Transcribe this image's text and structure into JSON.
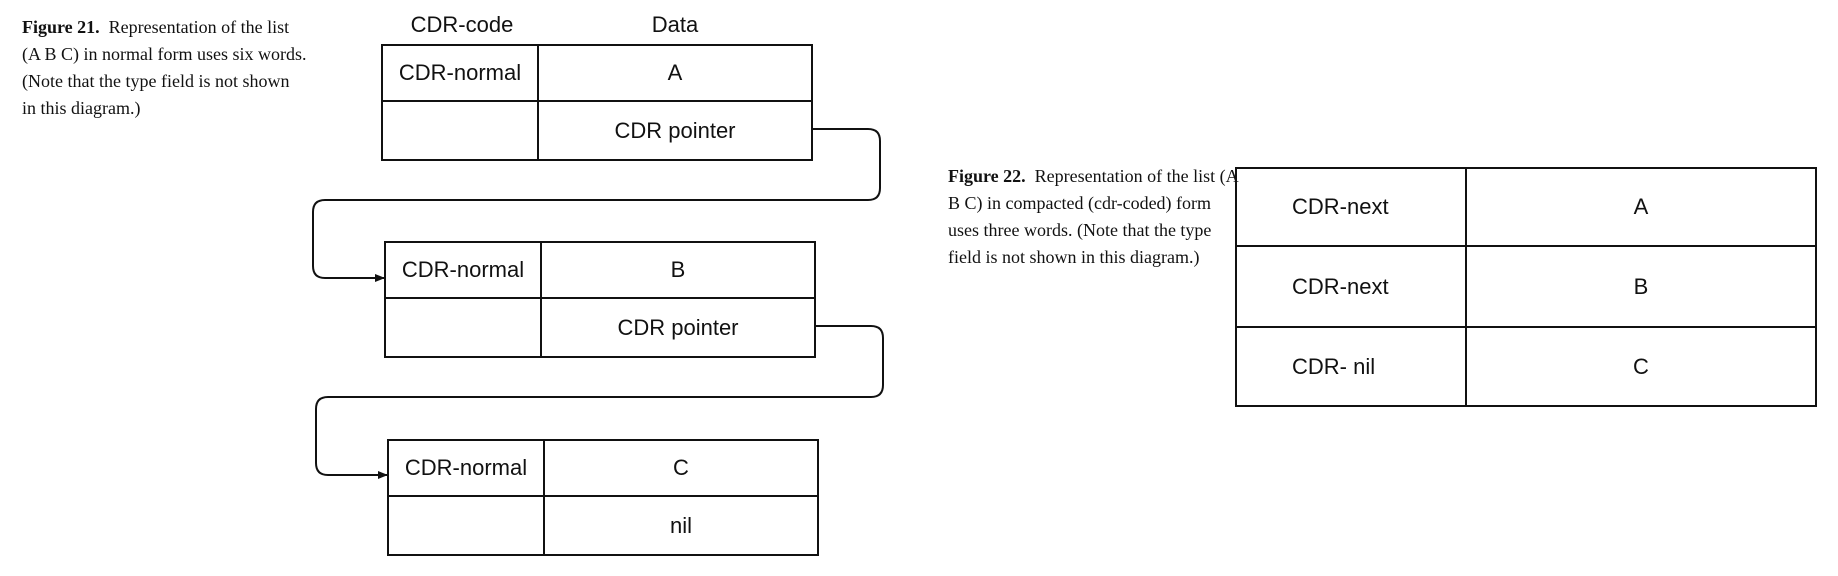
{
  "figure21": {
    "label": "Figure 21.",
    "text": "Representation of the list (A B C) in normal form uses six words. (Note that the type field is not shown in this diagram.)",
    "header_code": "CDR-code",
    "header_data": "Data",
    "cells": [
      {
        "code": "CDR-normal",
        "data": "A",
        "pointer": "CDR pointer"
      },
      {
        "code": "CDR-normal",
        "data": "B",
        "pointer": "CDR pointer"
      },
      {
        "code": "CDR-normal",
        "data": "C",
        "pointer": "nil"
      }
    ]
  },
  "figure22": {
    "label": "Figure 22.",
    "text": "Representation of the list (A B C) in compacted (cdr-coded) form uses three words. (Note that the type field is not shown in this diagram.)",
    "rows": [
      {
        "code": "CDR-next",
        "data": "A"
      },
      {
        "code": "CDR-next",
        "data": "B"
      },
      {
        "code": "CDR- nil",
        "data": "C"
      }
    ]
  }
}
